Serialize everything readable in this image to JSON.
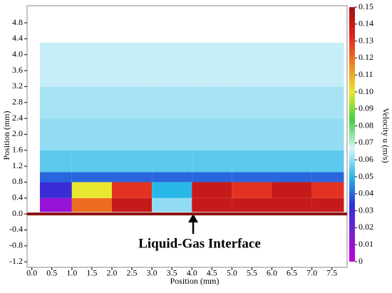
{
  "chart_data": {
    "type": "heatmap",
    "xlabel": "Position (mm)",
    "ylabel": "Position (mm)",
    "zlabel": "Velocity u (m/s)",
    "annotation": "Liquid-Gas Interface",
    "xlim": [
      -0.12,
      7.88
    ],
    "xticks": [
      {
        "value": 0,
        "label": "0.0"
      },
      0.5,
      {
        "value": 1,
        "label": "1.0"
      },
      1.5,
      {
        "value": 2,
        "label": "2.0"
      },
      2.5,
      {
        "value": 3,
        "label": "3.0"
      },
      3.5,
      {
        "value": 4,
        "label": "4.0"
      },
      4.5,
      {
        "value": 5,
        "label": "5.0"
      },
      5.5,
      {
        "value": 6,
        "label": "6.0"
      },
      6.5,
      {
        "value": 7,
        "label": "7.0"
      },
      7.5
    ],
    "ylim": [
      -1.34,
      5.23
    ],
    "yticks": [
      -1.2,
      -0.8,
      -0.4,
      {
        "value": 0,
        "label": "0.0"
      },
      0.4,
      0.8,
      1.2,
      1.6,
      {
        "value": 2,
        "label": "2.0"
      },
      2.4,
      2.8,
      3.2,
      3.6,
      {
        "value": 4,
        "label": "4.0"
      },
      4.4,
      4.8
    ],
    "zlim": [
      0,
      0.15
    ],
    "zticks": [
      0,
      0.01,
      0.02,
      0.03,
      0.04,
      0.05,
      0.06,
      0.07,
      0.08,
      0.09,
      {
        "value": 0.1,
        "label": "0.10"
      },
      0.11,
      0.12,
      0.13,
      0.14,
      0.15
    ],
    "colorscale": [
      "#c000e0",
      "#7a1fd0",
      "#2a30d8",
      "#28b8e8",
      "#d8f4fa",
      "#40d040",
      "#e8e830",
      "#f08020",
      "#e02020",
      "#a01010"
    ],
    "x_bins": [
      0.2,
      1,
      2,
      3,
      4,
      5,
      6,
      7,
      7.8
    ],
    "y_bins": [
      0.05,
      0.4,
      0.8,
      1.05,
      1.6,
      2.4,
      3.2,
      4.3
    ],
    "values": [
      [
        0.01,
        0.12,
        0.14,
        0.06,
        0.14,
        0.14,
        0.14,
        0.14
      ],
      [
        0.03,
        0.1,
        0.13,
        0.05,
        0.14,
        0.13,
        0.14,
        0.13
      ],
      [
        0.04,
        0.04,
        0.04,
        0.04,
        0.04,
        0.04,
        0.04,
        0.04
      ],
      [
        0.055,
        0.055,
        0.055,
        0.055,
        0.055,
        0.055,
        0.055,
        0.055
      ],
      [
        0.06,
        0.06,
        0.06,
        0.06,
        0.06,
        0.06,
        0.06,
        0.06
      ],
      [
        0.062,
        0.062,
        0.062,
        0.062,
        0.062,
        0.062,
        0.062,
        0.062
      ],
      [
        0.065,
        0.065,
        0.065,
        0.065,
        0.065,
        0.065,
        0.065,
        0.065
      ]
    ]
  }
}
